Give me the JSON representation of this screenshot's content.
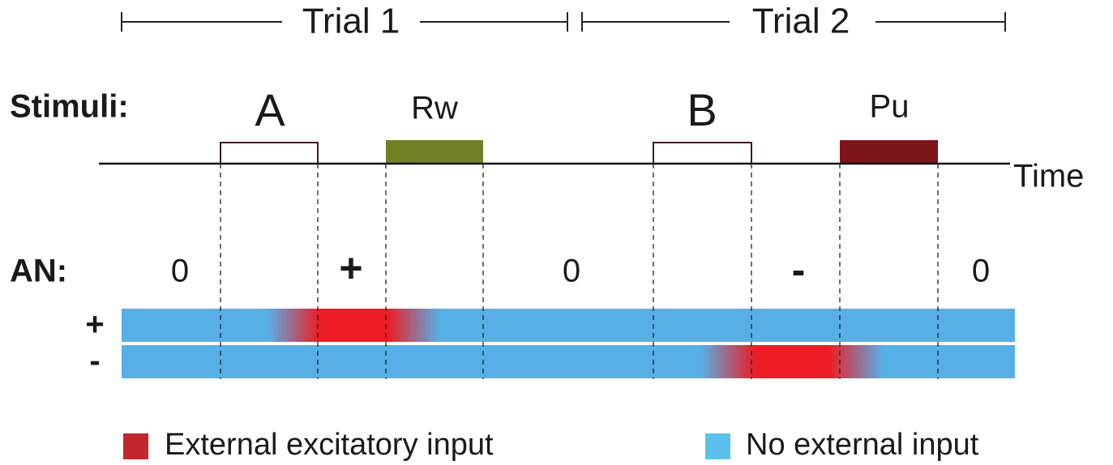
{
  "trials": [
    "Trial 1",
    "Trial 2"
  ],
  "stimuli": {
    "label": "Stimuli:",
    "items": [
      "A",
      "Rw",
      "B",
      "Pu"
    ],
    "axis_label": "Time"
  },
  "an": {
    "label": "AN:",
    "phases": [
      "0",
      "+",
      "0",
      "-",
      "0"
    ],
    "rows": [
      "+",
      "-"
    ]
  },
  "legend": [
    "External excitatory input",
    "No external input"
  ]
}
